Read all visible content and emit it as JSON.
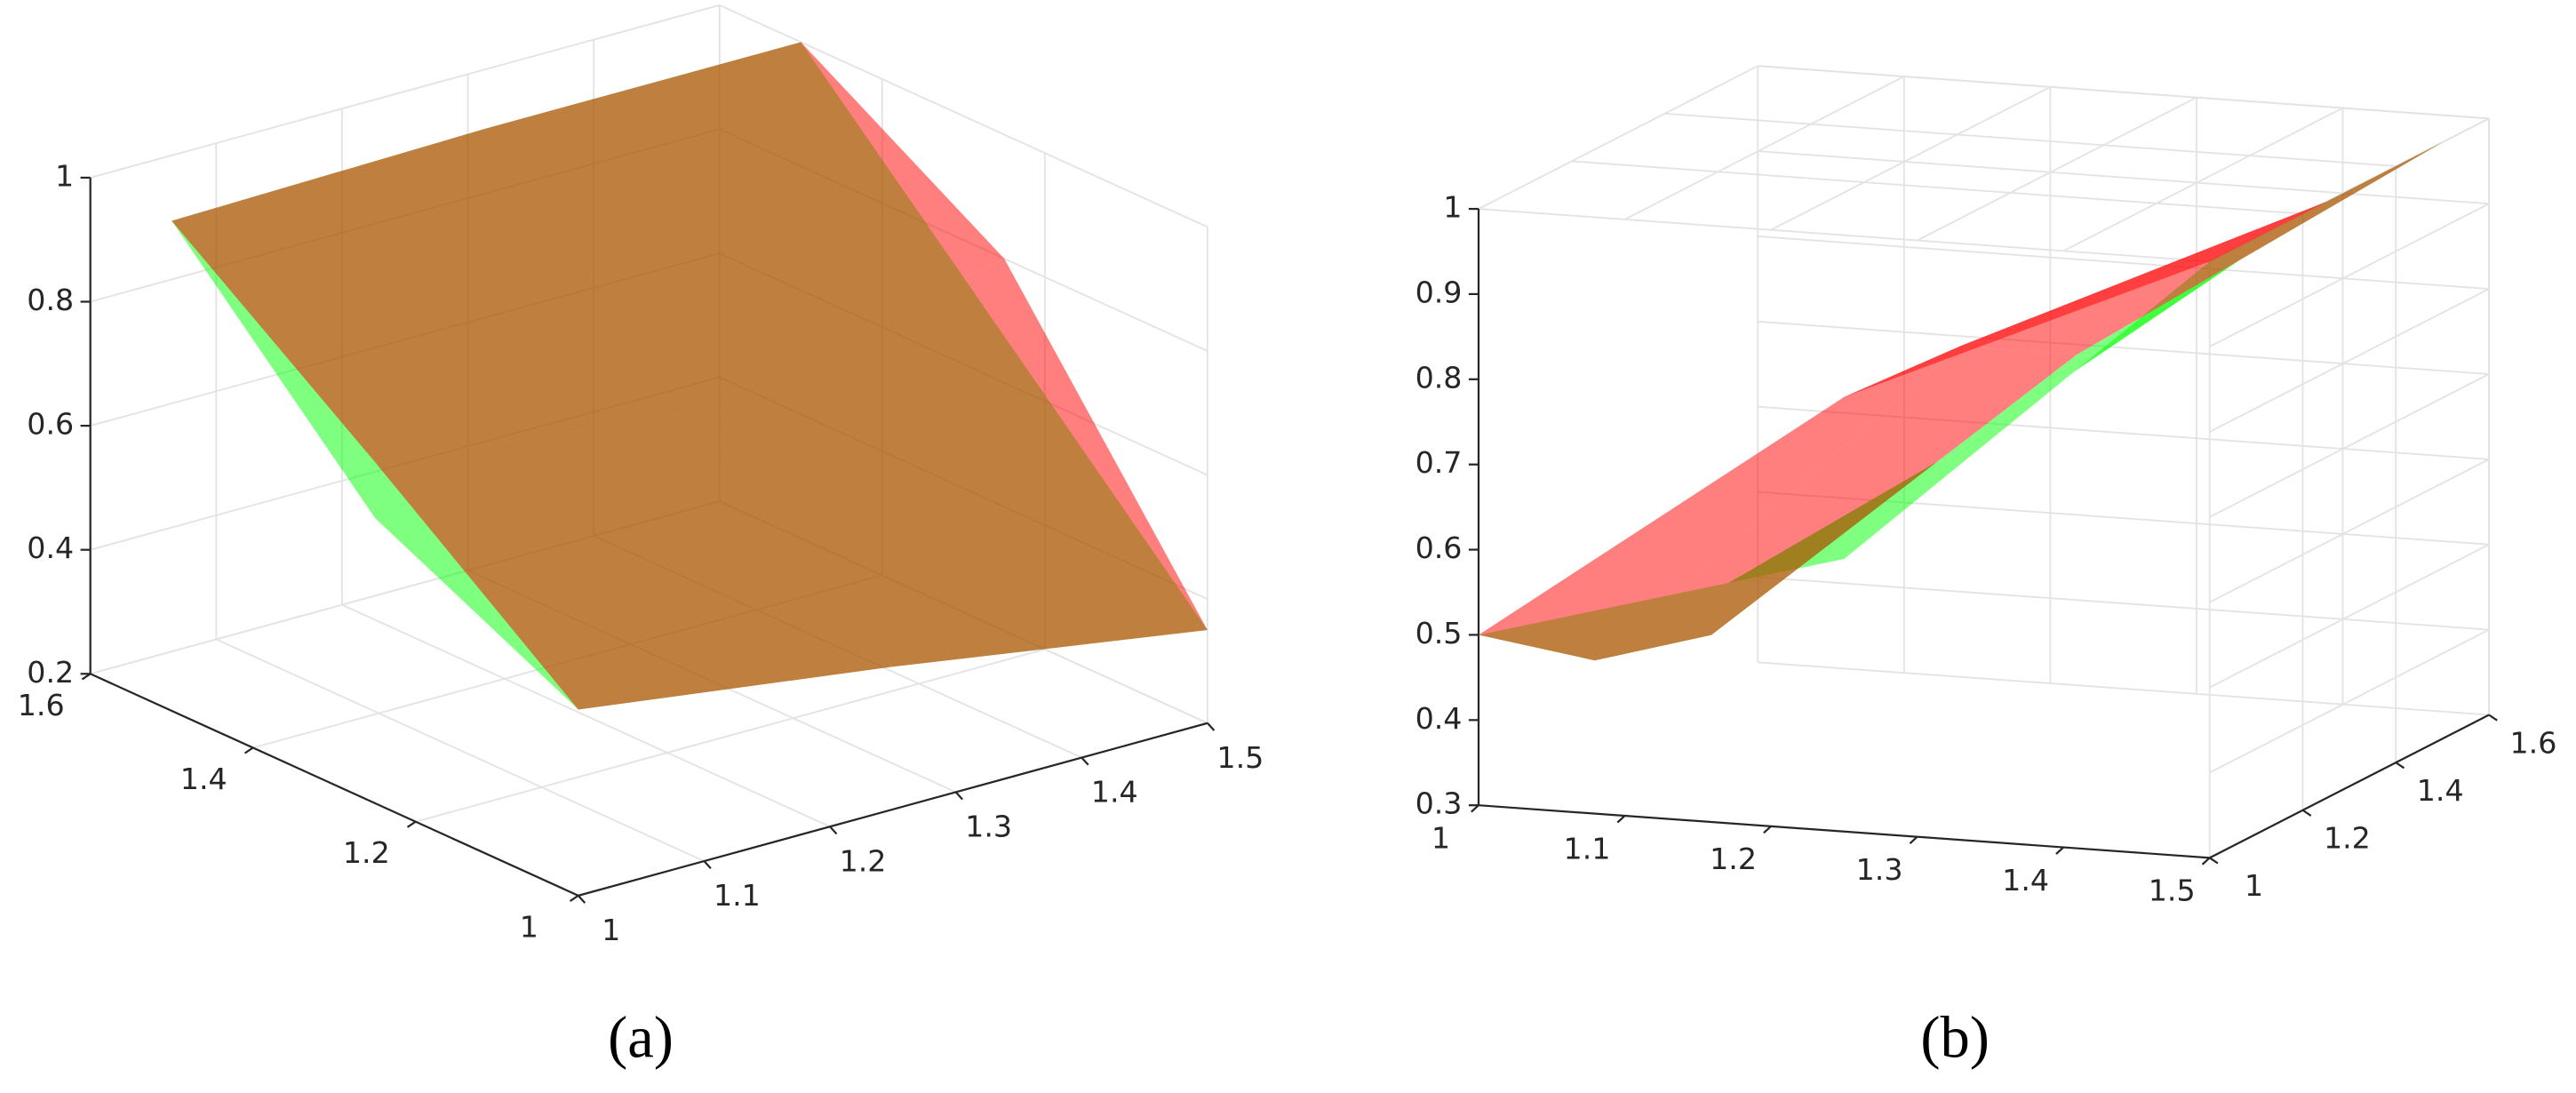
{
  "chart_data": [
    {
      "type": "surface",
      "caption": "(a)",
      "xlim": [
        1,
        1.5
      ],
      "ylim": [
        1,
        1.6
      ],
      "zlim": [
        0.2,
        1
      ],
      "xticks": [
        1,
        1.1,
        1.2,
        1.3,
        1.4,
        1.5
      ],
      "yticks": [
        1,
        1.2,
        1.4,
        1.6
      ],
      "zticks": [
        0.2,
        0.4,
        0.6,
        0.8,
        1
      ],
      "grid": true,
      "x": [
        1,
        1.25,
        1.5
      ],
      "y": [
        1,
        1.25,
        1.5
      ],
      "series": [
        {
          "color": "#00ff00",
          "z": [
            [
              0.5,
              0.43,
              0.35
            ],
            [
              0.66,
              0.66,
              0.675
            ],
            [
              0.99,
              1.0,
              1.0
            ]
          ]
        },
        {
          "color": "#ff0000",
          "z": [
            [
              0.5,
              0.43,
              0.35
            ],
            [
              0.75,
              0.69,
              0.8
            ],
            [
              0.99,
              1.0,
              1.0
            ]
          ]
        }
      ]
    },
    {
      "type": "surface",
      "caption": "(b)",
      "xlim": [
        1,
        1.5
      ],
      "ylim": [
        1,
        1.6
      ],
      "zlim": [
        0.3,
        1
      ],
      "xticks": [
        1,
        1.1,
        1.2,
        1.3,
        1.4,
        1.5
      ],
      "yticks": [
        1,
        1.2,
        1.4,
        1.6
      ],
      "zticks": [
        0.3,
        0.4,
        0.5,
        0.6,
        0.7,
        0.8,
        0.9,
        1
      ],
      "grid": true,
      "x": [
        1,
        1.25,
        1.5
      ],
      "y": [
        1,
        1.25,
        1.5
      ],
      "series": [
        {
          "color": "#00ff00",
          "z": [
            [
              0.5,
              0.62,
              1.0
            ],
            [
              0.4,
              0.68,
              1.0
            ],
            [
              0.36,
              0.72,
              1.0
            ]
          ]
        },
        {
          "color": "#ff0000",
          "z": [
            [
              0.5,
              0.81,
              1.0
            ],
            [
              0.4,
              0.8,
              1.0
            ],
            [
              0.36,
              0.72,
              1.0
            ]
          ]
        }
      ]
    }
  ]
}
